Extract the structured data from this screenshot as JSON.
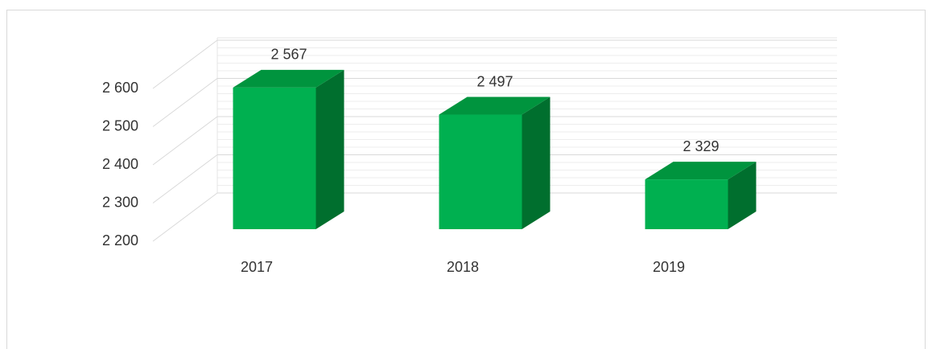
{
  "chart_data": {
    "type": "bar3d",
    "categories": [
      "2017",
      "2018",
      "2019"
    ],
    "values": [
      2567,
      2497,
      2329
    ],
    "value_labels": [
      "2 567",
      "2 497",
      "2 329"
    ],
    "colors": {
      "front": "#00b050",
      "top": "#00943e",
      "side": "#006f2e"
    },
    "ylim": [
      2200,
      2600
    ],
    "yticks": [
      {
        "value": 2200,
        "label": "2 200"
      },
      {
        "value": 2300,
        "label": "2 300"
      },
      {
        "value": 2400,
        "label": "2 400"
      },
      {
        "value": 2500,
        "label": "2 500"
      },
      {
        "value": 2600,
        "label": "2 600"
      }
    ],
    "grid": true
  }
}
